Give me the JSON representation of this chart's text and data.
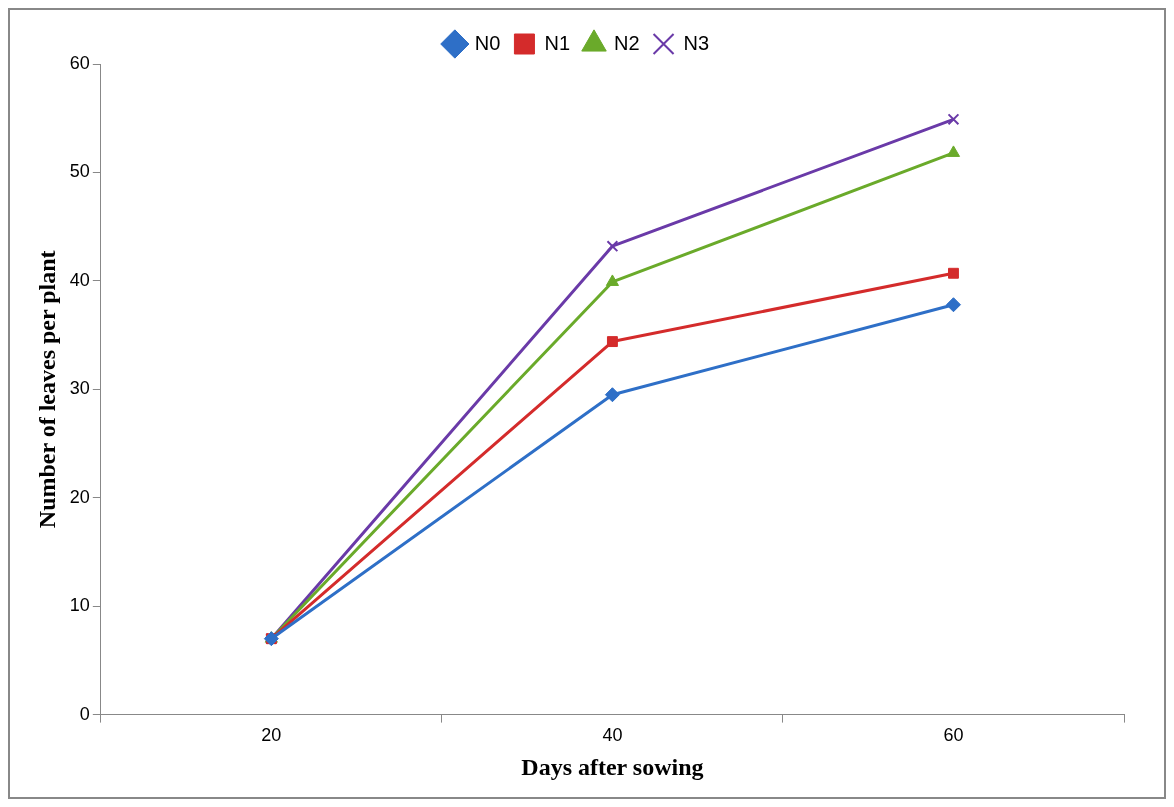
{
  "chart_data": {
    "type": "line",
    "xlabel": "Days after sowing",
    "ylabel": "Number of leaves per plant",
    "categories": [
      "20",
      "40",
      "60"
    ],
    "ylim": [
      0,
      60
    ],
    "yticks": [
      0,
      10,
      20,
      30,
      40,
      50,
      60
    ],
    "grid": false,
    "legend": "top",
    "line_style": "solid",
    "series": [
      {
        "name": "N0",
        "color": "#2e6fc7",
        "marker": "diamond",
        "values": [
          7,
          29.5,
          37.8
        ]
      },
      {
        "name": "N1",
        "color": "#d42b2b",
        "marker": "square",
        "values": [
          7,
          34.4,
          40.7
        ]
      },
      {
        "name": "N2",
        "color": "#6aaa2a",
        "marker": "triangle",
        "values": [
          7,
          39.9,
          51.8
        ]
      },
      {
        "name": "N3",
        "color": "#6a3aa8",
        "marker": "cross",
        "values": [
          7,
          43.2,
          54.9
        ]
      }
    ]
  }
}
